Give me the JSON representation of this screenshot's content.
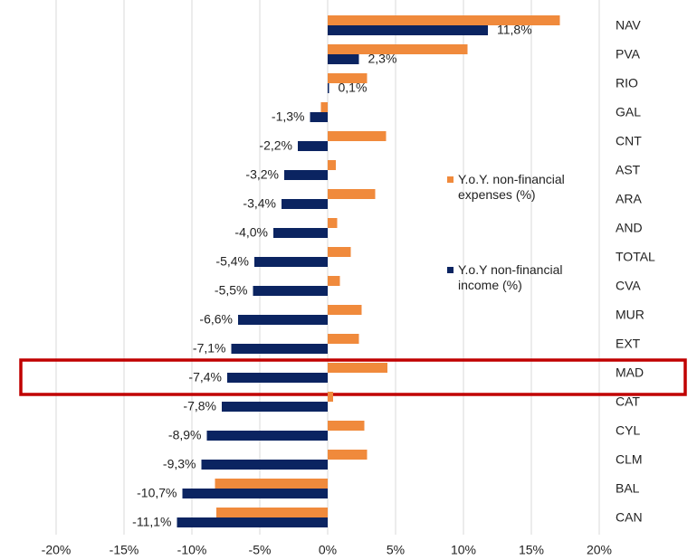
{
  "chart_data": {
    "type": "hbar",
    "categories": [
      "NAV",
      "PVA",
      "RIO",
      "GAL",
      "CNT",
      "AST",
      "ARA",
      "AND",
      "TOTAL",
      "CVA",
      "MUR",
      "EXT",
      "MAD",
      "CAT",
      "CYL",
      "CLM",
      "BAL",
      "CAN"
    ],
    "series": [
      {
        "name": "Y.o.Y. non-financial expenses (%)",
        "color": "#f08a3c",
        "values": [
          17.1,
          10.3,
          2.9,
          -0.5,
          4.3,
          0.6,
          3.5,
          0.7,
          1.7,
          0.9,
          2.5,
          2.3,
          4.4,
          0.4,
          2.7,
          2.9,
          -8.3,
          -8.2
        ]
      },
      {
        "name": "Y.o.Y non-financial income (%)",
        "color": "#0b2461",
        "values": [
          11.8,
          2.3,
          0.1,
          -1.3,
          -2.2,
          -3.2,
          -3.4,
          -4.0,
          -5.4,
          -5.5,
          -6.6,
          -7.1,
          -7.4,
          -7.8,
          -8.9,
          -9.3,
          -10.7,
          -11.1
        ],
        "value_labels": [
          "11,8%",
          "2,3%",
          "0,1%",
          "-1,3%",
          "-2,2%",
          "-3,2%",
          "-3,4%",
          "-4,0%",
          "-5,4%",
          "-5,5%",
          "-6,6%",
          "-7,1%",
          "-7,4%",
          "-7,8%",
          "-8,9%",
          "-9,3%",
          "-10,7%",
          "-11,1%"
        ]
      }
    ],
    "xlim": [
      -20,
      20
    ],
    "xticks": [
      {
        "value": -20,
        "label": "-20%"
      },
      {
        "value": -15,
        "label": "-15%"
      },
      {
        "value": -10,
        "label": "-10%"
      },
      {
        "value": -5,
        "label": "-5%"
      },
      {
        "value": 0,
        "label": "0%"
      },
      {
        "value": 5,
        "label": "5%"
      },
      {
        "value": 10,
        "label": "10%"
      },
      {
        "value": 15,
        "label": "15%"
      },
      {
        "value": 20,
        "label": "20%"
      }
    ],
    "grid": true
  }
}
